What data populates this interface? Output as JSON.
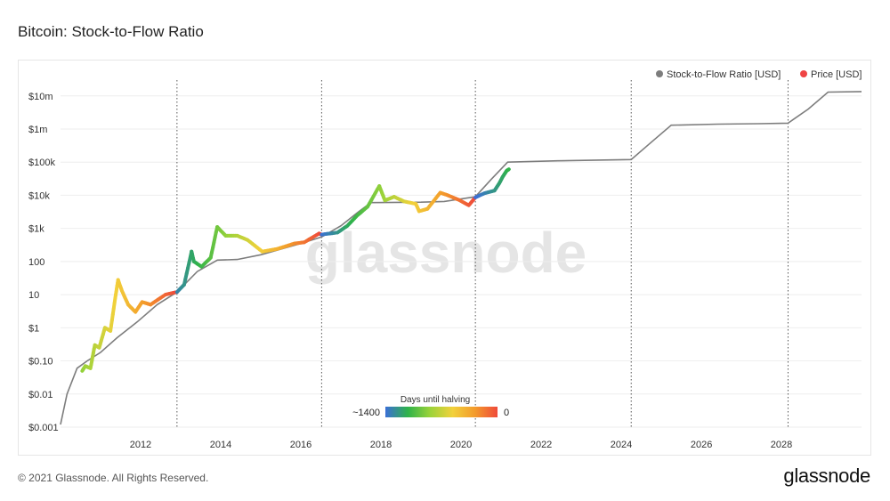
{
  "page": {
    "title": "Bitcoin: Stock-to-Flow Ratio",
    "copyright": "© 2021 Glassnode. All Rights Reserved.",
    "brand": "glassnode",
    "watermark": "glassnode"
  },
  "colors": {
    "model_line": "#7d7d7d",
    "price_legend": "#ef4444",
    "halving_line": "#555555",
    "gradient": [
      "#3b6fd6",
      "#2fb34a",
      "#9bd33a",
      "#f2d13b",
      "#f39a2b",
      "#ef4a3a"
    ]
  },
  "chart_data": {
    "type": "line",
    "y_scale": "log",
    "ylim": [
      0.001,
      30000000
    ],
    "xlim": [
      "2010-01-01",
      "2029-12-31"
    ],
    "grid": true,
    "legend_placement": "top-right",
    "y_ticks": [
      {
        "value": 10000000,
        "label": "$10m"
      },
      {
        "value": 1000000,
        "label": "$1m"
      },
      {
        "value": 100000,
        "label": "$100k"
      },
      {
        "value": 10000,
        "label": "$10k"
      },
      {
        "value": 1000,
        "label": "$1k"
      },
      {
        "value": 100,
        "label": "100"
      },
      {
        "value": 10,
        "label": "10"
      },
      {
        "value": 1,
        "label": "$1"
      },
      {
        "value": 0.1,
        "label": "$0.10"
      },
      {
        "value": 0.01,
        "label": "$0.01"
      },
      {
        "value": 0.001,
        "label": "$0.001"
      }
    ],
    "x_ticks": [
      {
        "value": "2012-01-01",
        "label": "2012"
      },
      {
        "value": "2014-01-01",
        "label": "2014"
      },
      {
        "value": "2016-01-01",
        "label": "2016"
      },
      {
        "value": "2018-01-01",
        "label": "2018"
      },
      {
        "value": "2020-01-01",
        "label": "2020"
      },
      {
        "value": "2022-01-01",
        "label": "2022"
      },
      {
        "value": "2024-01-01",
        "label": "2024"
      },
      {
        "value": "2026-01-01",
        "label": "2026"
      },
      {
        "value": "2028-01-01",
        "label": "2028"
      }
    ],
    "halvings": [
      "2012-11-28",
      "2016-07-09",
      "2020-05-11",
      "2024-04-01",
      "2028-03-01"
    ],
    "colorbar": {
      "title": "Days until halving",
      "min_label": "~1400",
      "max_label": "0"
    },
    "series": [
      {
        "name": "Stock-to-Flow Ratio [USD]",
        "points": [
          [
            "2010-01-01",
            0.0012
          ],
          [
            "2010-03-01",
            0.01
          ],
          [
            "2010-06-01",
            0.06
          ],
          [
            "2010-09-01",
            0.1
          ],
          [
            "2011-01-01",
            0.18
          ],
          [
            "2011-06-01",
            0.5
          ],
          [
            "2011-12-01",
            1.5
          ],
          [
            "2012-06-01",
            5
          ],
          [
            "2012-11-28",
            12
          ],
          [
            "2013-06-01",
            50
          ],
          [
            "2013-12-01",
            110
          ],
          [
            "2014-06-01",
            115
          ],
          [
            "2015-01-01",
            160
          ],
          [
            "2015-06-01",
            220
          ],
          [
            "2016-01-01",
            350
          ],
          [
            "2016-07-09",
            550
          ],
          [
            "2017-01-01",
            1200
          ],
          [
            "2017-06-01",
            3000
          ],
          [
            "2017-10-01",
            6000
          ],
          [
            "2018-06-01",
            6100
          ],
          [
            "2019-01-01",
            6200
          ],
          [
            "2019-08-01",
            6500
          ],
          [
            "2020-05-11",
            9000
          ],
          [
            "2020-10-01",
            30000
          ],
          [
            "2021-03-01",
            100000
          ],
          [
            "2022-06-01",
            110000
          ],
          [
            "2023-06-01",
            115000
          ],
          [
            "2024-04-01",
            120000
          ],
          [
            "2024-10-01",
            400000
          ],
          [
            "2025-04-01",
            1300000
          ],
          [
            "2026-06-01",
            1400000
          ],
          [
            "2027-06-01",
            1450000
          ],
          [
            "2028-03-01",
            1500000
          ],
          [
            "2028-09-01",
            4000000
          ],
          [
            "2029-03-01",
            13000000
          ],
          [
            "2029-12-31",
            13500000
          ]
        ]
      },
      {
        "name": "Price [USD]",
        "points": [
          [
            "2010-07-18",
            0.05
          ],
          [
            "2010-08-15",
            0.07
          ],
          [
            "2010-10-01",
            0.06
          ],
          [
            "2010-11-10",
            0.3
          ],
          [
            "2010-12-20",
            0.25
          ],
          [
            "2011-02-10",
            1.0
          ],
          [
            "2011-04-01",
            0.8
          ],
          [
            "2011-05-15",
            8
          ],
          [
            "2011-06-10",
            28
          ],
          [
            "2011-07-15",
            13
          ],
          [
            "2011-09-10",
            5
          ],
          [
            "2011-11-15",
            3
          ],
          [
            "2012-01-15",
            6
          ],
          [
            "2012-04-01",
            5
          ],
          [
            "2012-08-15",
            10
          ],
          [
            "2012-11-28",
            12
          ],
          [
            "2013-02-01",
            20
          ],
          [
            "2013-04-10",
            200
          ],
          [
            "2013-05-01",
            100
          ],
          [
            "2013-07-10",
            70
          ],
          [
            "2013-10-01",
            130
          ],
          [
            "2013-11-30",
            1100
          ],
          [
            "2014-02-15",
            600
          ],
          [
            "2014-06-01",
            600
          ],
          [
            "2014-09-01",
            450
          ],
          [
            "2015-01-15",
            200
          ],
          [
            "2015-06-01",
            240
          ],
          [
            "2015-11-05",
            350
          ],
          [
            "2016-02-01",
            380
          ],
          [
            "2016-06-15",
            700
          ],
          [
            "2016-07-09",
            650
          ],
          [
            "2016-12-01",
            750
          ],
          [
            "2017-03-01",
            1200
          ],
          [
            "2017-06-01",
            2500
          ],
          [
            "2017-09-01",
            4500
          ],
          [
            "2017-12-17",
            19000
          ],
          [
            "2018-02-06",
            7000
          ],
          [
            "2018-05-01",
            9000
          ],
          [
            "2018-08-01",
            6500
          ],
          [
            "2018-11-15",
            5500
          ],
          [
            "2018-12-15",
            3300
          ],
          [
            "2019-03-01",
            3900
          ],
          [
            "2019-06-26",
            12000
          ],
          [
            "2019-09-01",
            10000
          ],
          [
            "2019-12-15",
            7200
          ],
          [
            "2020-03-12",
            5000
          ],
          [
            "2020-05-11",
            8600
          ],
          [
            "2020-08-01",
            11500
          ],
          [
            "2020-11-01",
            13800
          ],
          [
            "2020-12-15",
            23000
          ],
          [
            "2021-01-15",
            36000
          ],
          [
            "2021-02-20",
            55000
          ],
          [
            "2021-03-13",
            61000
          ]
        ]
      }
    ]
  }
}
